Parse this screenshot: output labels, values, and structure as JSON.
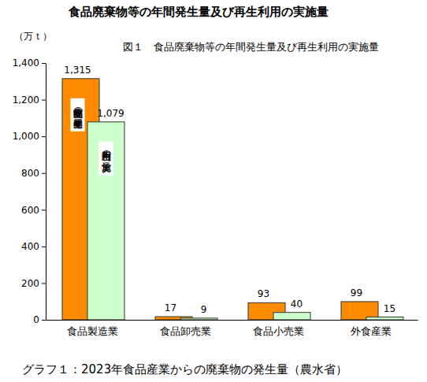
{
  "chart_data": {
    "type": "bar",
    "title": "食品廃棄物等の年間発生量及び再生利用の実施量",
    "subtitle": "図１　食品廃棄物等の年間発生量及び再生利用の実施量",
    "y_label": "（万ｔ）",
    "caption": "グラフ１：2023年食品産業からの廃棄物の発生量（農水省）",
    "categories": [
      "食品製造業",
      "食品卸売業",
      "食品小売業",
      "外食産業"
    ],
    "series": [
      {
        "name": "食品廃棄物等の年間発生量",
        "color": "#ff8c00",
        "values": [
          1315,
          17,
          93,
          99
        ],
        "value_labels": [
          "1,315",
          "17",
          "93",
          "99"
        ]
      },
      {
        "name": "再生利用の実施量",
        "color": "#ccffcc",
        "values": [
          1079,
          9,
          40,
          15
        ],
        "value_labels": [
          "1,079",
          "9",
          "40",
          "15"
        ]
      }
    ],
    "ylim": [
      0,
      1400
    ],
    "yticks": [
      0,
      200,
      400,
      600,
      800,
      {
        "value": 1000,
        "label": "1,000"
      },
      {
        "value": 1200,
        "label": "1,200"
      },
      {
        "value": 1400,
        "label": "1,400"
      }
    ],
    "grid": false,
    "data_labels": true
  }
}
